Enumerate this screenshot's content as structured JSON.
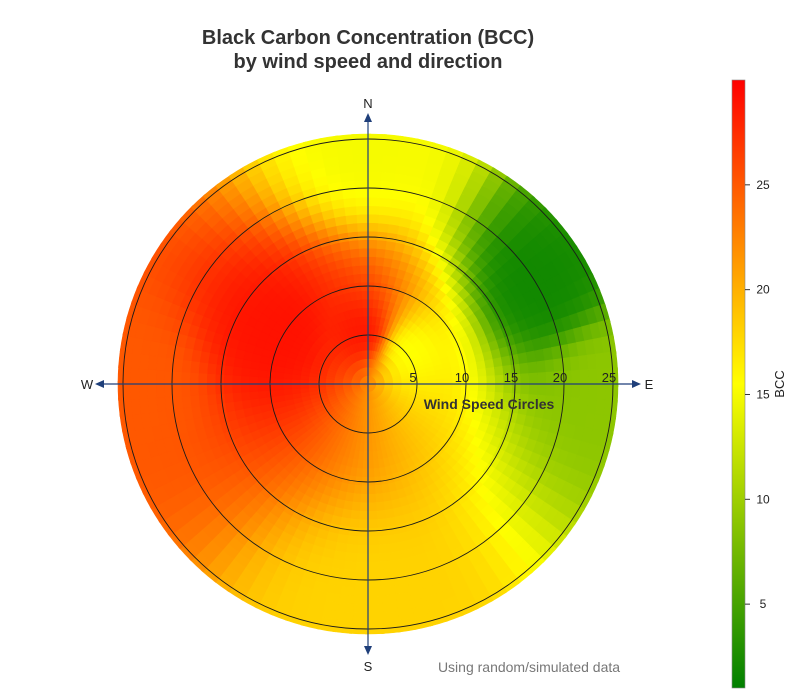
{
  "chart_data": {
    "type": "heatmap",
    "subtype": "polar",
    "title_line1": "Black Carbon Concentration (BCC)",
    "title_line2": "by wind speed and direction",
    "compass": {
      "north": "N",
      "east": "E",
      "south": "S",
      "west": "W"
    },
    "radial_axis": {
      "label": "Wind Speed Circles",
      "ticks": [
        5,
        10,
        15,
        20,
        25
      ],
      "ring_values": [
        5,
        10,
        15,
        20,
        25
      ],
      "range": [
        0,
        26
      ]
    },
    "colorbar": {
      "title": "BCC",
      "ticks": [
        5,
        10,
        15,
        20,
        25
      ],
      "range": [
        1,
        30
      ],
      "colors": [
        "#008000",
        "#ffff00",
        "#ff0000"
      ]
    },
    "field_samples": [
      {
        "direction_deg": 0,
        "speed": 5,
        "bcc": 29
      },
      {
        "direction_deg": 0,
        "speed": 25,
        "bcc": 15
      },
      {
        "direction_deg": 45,
        "speed": 5,
        "bcc": 15
      },
      {
        "direction_deg": 60,
        "speed": 20,
        "bcc": 2
      },
      {
        "direction_deg": 90,
        "speed": 25,
        "bcc": 9
      },
      {
        "direction_deg": 180,
        "speed": 25,
        "bcc": 18
      },
      {
        "direction_deg": 270,
        "speed": 25,
        "bcc": 25
      },
      {
        "direction_deg": 300,
        "speed": 10,
        "bcc": 29
      }
    ],
    "footnote": "Using random/simulated data",
    "grid": true
  }
}
